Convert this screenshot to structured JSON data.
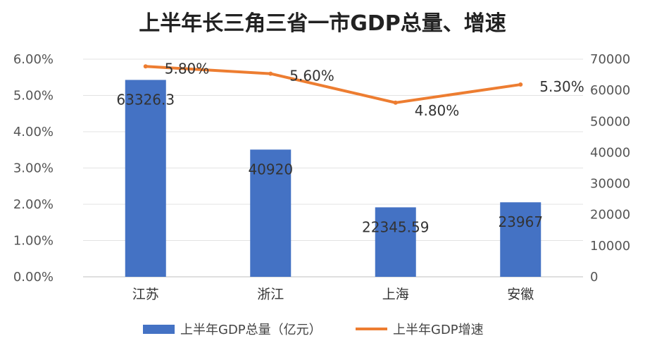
{
  "chart_data": {
    "type": "bar",
    "title": "上半年长三角三省一市GDP总量、增速",
    "categories": [
      "江苏",
      "浙江",
      "上海",
      "安徽"
    ],
    "series": [
      {
        "name": "上半年GDP总量（亿元）",
        "type": "bar",
        "axis": "right",
        "values": [
          63326.3,
          40920,
          22345.59,
          23967
        ],
        "labels": [
          "63326.3",
          "40920",
          "22345.59",
          "23967"
        ],
        "color": "#4472C4"
      },
      {
        "name": "上半年GDP增速",
        "type": "line",
        "axis": "left",
        "values": [
          5.8,
          5.6,
          4.8,
          5.3
        ],
        "labels": [
          "5.80%",
          "5.60%",
          "4.80%",
          "5.30%"
        ],
        "color": "#ED7D31"
      }
    ],
    "y_left": {
      "ylim": [
        0,
        6
      ],
      "ticks": [
        "0.00%",
        "1.00%",
        "2.00%",
        "3.00%",
        "4.00%",
        "5.00%",
        "6.00%"
      ]
    },
    "y_right": {
      "ylim": [
        0,
        70000
      ],
      "ticks": [
        "0",
        "10000",
        "20000",
        "30000",
        "40000",
        "50000",
        "60000",
        "70000"
      ]
    },
    "grid": true,
    "legend_position": "bottom"
  }
}
